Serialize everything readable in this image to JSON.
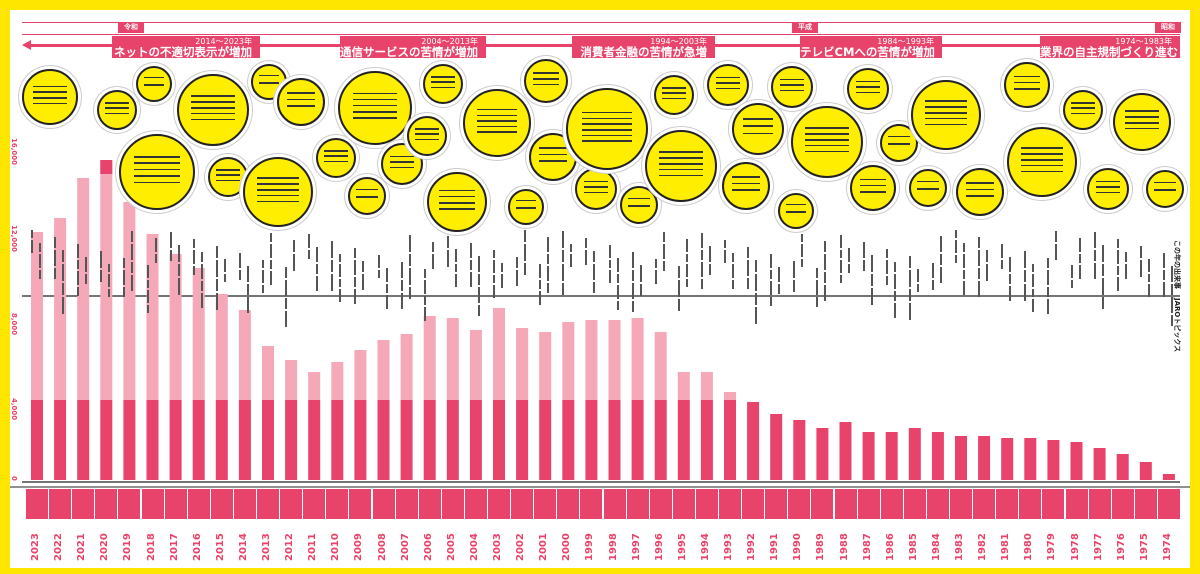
{
  "eras": [
    {
      "label": "令和"
    },
    {
      "label": "平成"
    },
    {
      "label": "昭和"
    }
  ],
  "periods": [
    {
      "years": "2014～2023年",
      "title": "ネットの不適切表示が増加"
    },
    {
      "years": "2004～2013年",
      "title": "通信サービスの苦情が増加"
    },
    {
      "years": "1994～2003年",
      "title": "消費者金融の苦情が急増"
    },
    {
      "years": "1984～1993年",
      "title": "テレビCMへの苦情が増加"
    },
    {
      "years": "1974～1983年",
      "title": "業界の自主規制づくり進む"
    }
  ],
  "side_labels": {
    "events": "この年の出来事",
    "jaro_topics": "JAROトピックス"
  },
  "colors": {
    "accent": "#e8436b",
    "light": "#f4a8b8",
    "background": "#ffe600",
    "bubble": "#ffee00"
  },
  "chart_data": {
    "type": "bar",
    "title": "",
    "xlabel": "",
    "ylabel": "",
    "yticks": [
      "0",
      "4,000",
      "8,000",
      "12,000",
      "16,000"
    ],
    "ylim": [
      0,
      17000
    ],
    "categories": [
      "2023",
      "2022",
      "2021",
      "2020",
      "2019",
      "2018",
      "2017",
      "2016",
      "2015",
      "2014",
      "2013",
      "2012",
      "2011",
      "2010",
      "2009",
      "2008",
      "2007",
      "2006",
      "2005",
      "2004",
      "2003",
      "2002",
      "2001",
      "2000",
      "1999",
      "1998",
      "1997",
      "1996",
      "1995",
      "1994",
      "1993",
      "1992",
      "1991",
      "1990",
      "1989",
      "1988",
      "1987",
      "1986",
      "1985",
      "1984",
      "1983",
      "1982",
      "1981",
      "1980",
      "1979",
      "1978",
      "1977",
      "1976",
      "1975",
      "1974"
    ],
    "series": [
      {
        "name": "total",
        "values": [
          12400,
          13100,
          15100,
          16000,
          13900,
          12300,
          11300,
          10600,
          9300,
          8500,
          6700,
          6000,
          5400,
          5900,
          6500,
          7000,
          7300,
          8200,
          8100,
          7500,
          8600,
          7600,
          7400,
          7900,
          8000,
          8000,
          8100,
          7400,
          5400,
          5400,
          4400,
          3900,
          3300,
          3000,
          2600,
          2900,
          2400,
          2400,
          2600,
          2400,
          2200,
          2200,
          2100,
          2100,
          2000,
          1900,
          1600,
          1300,
          900,
          300
        ]
      },
      {
        "name": "highlighted",
        "values": [
          null,
          null,
          null,
          16000,
          null,
          null,
          null,
          null,
          null,
          null,
          null,
          null,
          null,
          null,
          null,
          null,
          null,
          null,
          null,
          null,
          null,
          null,
          null,
          null,
          null,
          null,
          null,
          null,
          null,
          null,
          null,
          null,
          null,
          null,
          null,
          null,
          null,
          null,
          null,
          null,
          null,
          null,
          null,
          null,
          null,
          null,
          null,
          null,
          null,
          null
        ]
      }
    ]
  }
}
